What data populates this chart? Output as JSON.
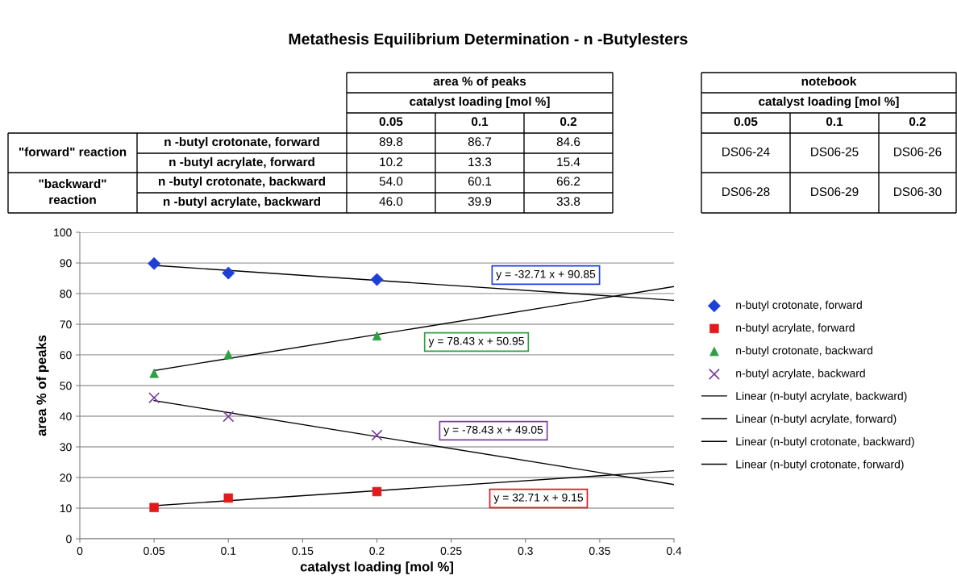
{
  "chart_data": {
    "type": "scatter",
    "title": "Metathesis Equilibrium Determination - n -Butylesters",
    "xlabel": "catalyst loading [mol %]",
    "ylabel": "area % of peaks",
    "xlim": [
      0,
      0.4
    ],
    "xticks": [
      0,
      0.05,
      0.1,
      0.15,
      0.2,
      0.25,
      0.3,
      0.35,
      0.4
    ],
    "ylim": [
      0,
      100
    ],
    "yticks": [
      0,
      10,
      20,
      30,
      40,
      50,
      60,
      70,
      80,
      90,
      100
    ],
    "grid": "y",
    "legend": "right",
    "series": [
      {
        "name": "n-butyl crotonate, forward",
        "marker": "diamond",
        "color": "#1c3fd6",
        "x": [
          0.05,
          0.1,
          0.2
        ],
        "values": [
          89.8,
          86.7,
          84.6
        ]
      },
      {
        "name": "n-butyl acrylate, forward",
        "marker": "square",
        "color": "#e3191c",
        "x": [
          0.05,
          0.1,
          0.2
        ],
        "values": [
          10.2,
          13.3,
          15.4
        ]
      },
      {
        "name": "n-butyl crotonate, backward",
        "marker": "triangle",
        "color": "#2ea043",
        "x": [
          0.05,
          0.1,
          0.2
        ],
        "values": [
          54.0,
          60.1,
          66.2
        ]
      },
      {
        "name": "n-butyl acrylate, backward",
        "marker": "cross",
        "color": "#7a3ea0",
        "x": [
          0.05,
          0.1,
          0.2
        ],
        "values": [
          46.0,
          39.9,
          33.8
        ]
      },
      {
        "name": "Linear (n-butyl acrylate, backward)",
        "type": "line",
        "color": "#000000",
        "x": [
          0.05,
          0.4
        ],
        "values": [
          45.1,
          17.7
        ]
      },
      {
        "name": "Linear (n-butyl acrylate, forward)",
        "type": "line",
        "color": "#000000",
        "x": [
          0.05,
          0.4
        ],
        "values": [
          10.8,
          22.2
        ]
      },
      {
        "name": "Linear (n-butyl crotonate, backward)",
        "type": "line",
        "color": "#000000",
        "x": [
          0.05,
          0.4
        ],
        "values": [
          54.9,
          82.3
        ]
      },
      {
        "name": "Linear (n-butyl crotonate, forward)",
        "type": "line",
        "color": "#000000",
        "x": [
          0.05,
          0.4
        ],
        "values": [
          89.2,
          77.8
        ]
      }
    ],
    "annotations": [
      "y = -32.71 x + 90.85",
      "y = 32.71 x + 9.15",
      "y = 78.43 x + 50.95",
      "y = -78.43 x + 49.05",
      "area % of peaks",
      "catalyst loading [mol %]",
      "notebook",
      "catalyst loading [mol %]",
      "\"forward\" reaction",
      "\"backward\"\nreaction",
      "n -butyl crotonate, forward",
      "n -butyl acrylate, forward",
      "n -butyl crotonate, backward",
      "n -butyl acrylate, backward",
      "0.05",
      "0.1",
      "0.2",
      "0.05",
      "0.1",
      "0.2",
      "89.8",
      "86.7",
      "84.6",
      "10.2",
      "13.3",
      "15.4",
      "54.0",
      "60.1",
      "66.2",
      "46.0",
      "39.9",
      "33.8",
      "DS06-24",
      "DS06-25",
      "DS06-26",
      "DS06-28",
      "DS06-29",
      "DS06-30"
    ]
  }
}
